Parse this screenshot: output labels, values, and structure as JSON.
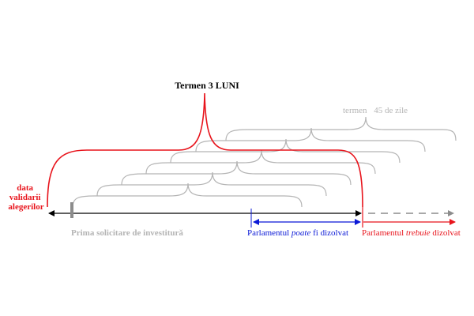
{
  "term_main": "Termen 3 LUNI",
  "term_small_prefix": "termen",
  "term_small_value": "45 de zile",
  "left_label_lines": [
    "data",
    "validarii",
    "alegerilor"
  ],
  "first_request": "Prima solicitare de investitură",
  "may_dissolve": {
    "before": "Parlamentul ",
    "emph": "poate",
    "after": " fi dizolvat"
  },
  "must_dissolve": {
    "before": "Parlamentul ",
    "emph": "trebuie",
    "after": " dizolvat"
  },
  "colors": {
    "red": "#e8141c",
    "blue": "#0a18d6",
    "gray": "#b4b4b4",
    "dark_gray": "#8c8c8c",
    "black": "#000000"
  }
}
